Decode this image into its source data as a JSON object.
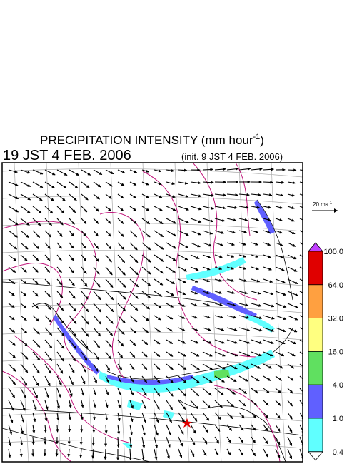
{
  "title": {
    "text": "PRECIPITATION INTENSITY (mm hour",
    "superscript": "-1",
    "close": ")"
  },
  "valid_time": "19 JST 4 FEB. 2006",
  "init_time": "(init. 9 JST 4 FEB. 2006)",
  "wind_scale": {
    "label": "20 ms",
    "superscript": "-1"
  },
  "colorbar": {
    "labels": [
      "100.0",
      "64.0",
      "32.0",
      "16.0",
      "4.0",
      "1.0",
      "0.4"
    ],
    "colors": [
      "#c040ff",
      "#e00000",
      "#ffa040",
      "#ffff80",
      "#60e060",
      "#6060ff",
      "#60ffff",
      "#ffffff"
    ]
  }
}
